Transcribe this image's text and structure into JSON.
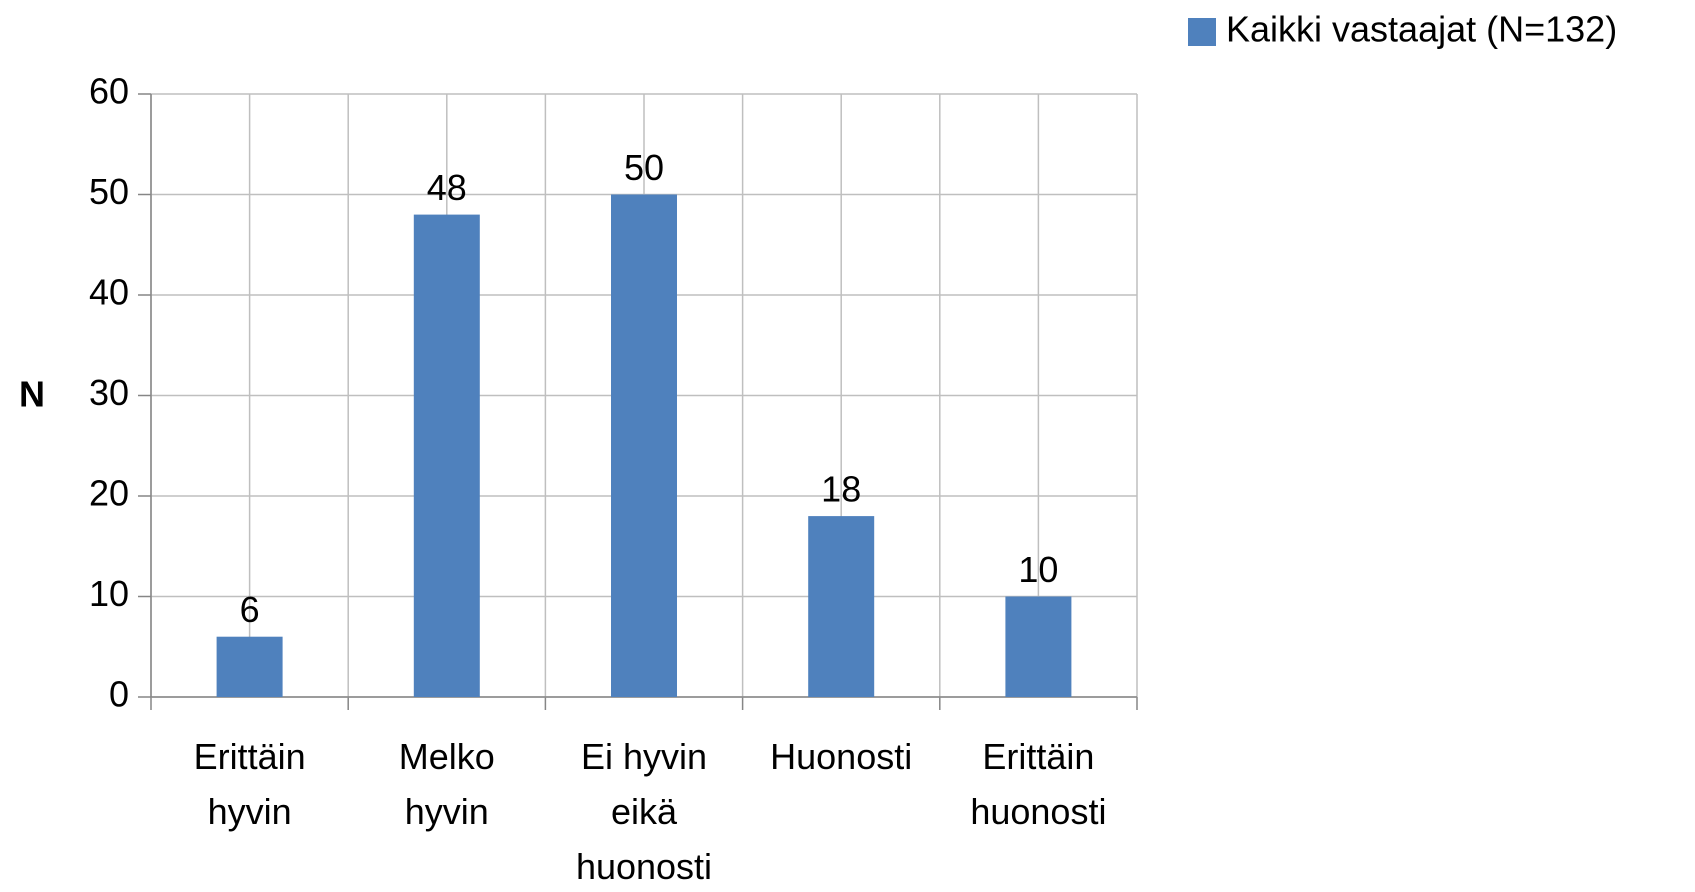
{
  "chart_data": {
    "type": "bar",
    "categories": [
      [
        "Erittäin",
        "hyvin"
      ],
      [
        "Melko",
        "hyvin"
      ],
      [
        "Ei hyvin",
        "eikä",
        "huonosti"
      ],
      [
        "Huonosti"
      ],
      [
        "Erittäin",
        "huonosti"
      ]
    ],
    "series": [
      {
        "name": "Kaikki vastaajat (N=132)",
        "color": "#4f81bd",
        "values": [
          6,
          48,
          50,
          18,
          10
        ]
      }
    ],
    "y_label": "N",
    "ylim": [
      0,
      60
    ],
    "yticks": [
      0,
      10,
      20,
      30,
      40,
      50,
      60
    ],
    "grid": true,
    "legend": "top-right"
  }
}
